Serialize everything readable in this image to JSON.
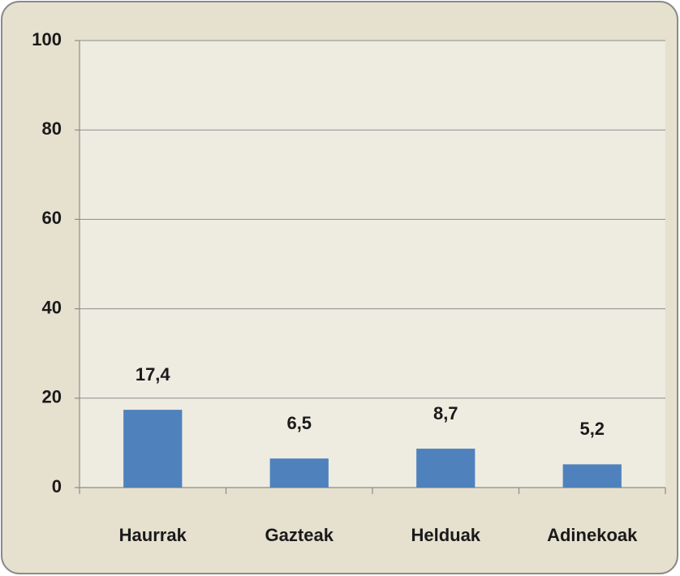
{
  "chart_data": {
    "type": "bar",
    "categories": [
      "Haurrak",
      "Gazteak",
      "Helduak",
      "Adinekoak"
    ],
    "values": [
      17.4,
      6.5,
      8.7,
      5.2
    ],
    "value_labels": [
      "17,4",
      "6,5",
      "8,7",
      "5,2"
    ],
    "color": "#4f81bd",
    "ylim": [
      0,
      100
    ],
    "yticks": [
      0,
      20,
      40,
      60,
      80,
      100
    ],
    "grid": true
  }
}
